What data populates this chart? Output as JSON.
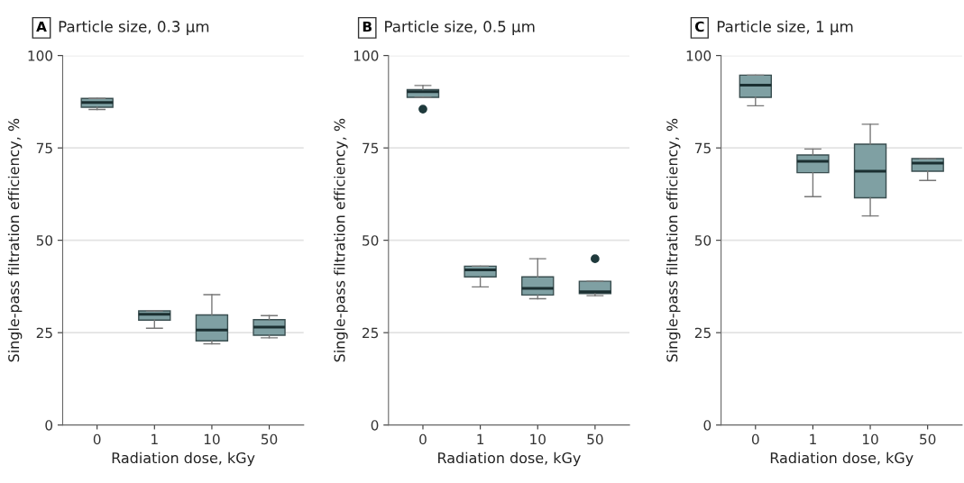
{
  "chart_data": [
    {
      "type": "box",
      "title": "Particle size, 0.3 µm",
      "annotations": [
        "A"
      ],
      "xlabel": "Radiation dose, kGy",
      "ylabel": "Single-pass filtration efficiency, %",
      "categories": [
        "0",
        "1",
        "10",
        "50"
      ],
      "color": "#7fa0a3",
      "ylim": [
        0,
        100
      ],
      "yticks": [
        0,
        25,
        50,
        75,
        100
      ],
      "grid": "y",
      "legend": false,
      "boxes": [
        {
          "low": 85.4,
          "q1": 86.0,
          "median": 87.3,
          "q3": 88.4,
          "high": 88.4
        },
        {
          "low": 26.2,
          "q1": 28.4,
          "median": 30.0,
          "q3": 30.9,
          "high": 30.9
        },
        {
          "low": 22.0,
          "q1": 22.8,
          "median": 25.7,
          "q3": 29.8,
          "high": 35.3
        },
        {
          "low": 23.6,
          "q1": 24.3,
          "median": 26.5,
          "q3": 28.5,
          "high": 29.6
        }
      ]
    },
    {
      "type": "box",
      "title": "Particle size, 0.5 µm",
      "annotations": [
        "B"
      ],
      "xlabel": "Radiation dose, kGy",
      "ylabel": "Single-pass filtration efficiency, %",
      "categories": [
        "0",
        "1",
        "10",
        "50"
      ],
      "color": "#7fa0a3",
      "ylim": [
        0,
        100
      ],
      "yticks": [
        0,
        25,
        50,
        75,
        100
      ],
      "grid": "y",
      "legend": false,
      "boxes": [
        {
          "low": 88.7,
          "q1": 88.7,
          "median": 90.2,
          "q3": 90.8,
          "high": 91.9,
          "outliers": [
            85.5
          ]
        },
        {
          "low": 37.4,
          "q1": 40.1,
          "median": 42.0,
          "q3": 43.0,
          "high": 43.0
        },
        {
          "low": 34.2,
          "q1": 35.2,
          "median": 37.0,
          "q3": 40.1,
          "high": 45.0
        },
        {
          "low": 35.0,
          "q1": 35.6,
          "median": 36.1,
          "q3": 38.9,
          "high": 38.9,
          "outliers": [
            45.0
          ]
        }
      ]
    },
    {
      "type": "box",
      "title": "Particle size, 1 µm",
      "annotations": [
        "C"
      ],
      "xlabel": "Radiation dose, kGy",
      "ylabel": "Single-pass filtration efficiency, %",
      "categories": [
        "0",
        "1",
        "10",
        "50"
      ],
      "color": "#7fa0a3",
      "ylim": [
        0,
        100
      ],
      "yticks": [
        0,
        25,
        50,
        75,
        100
      ],
      "grid": "y",
      "legend": false,
      "boxes": [
        {
          "low": 86.4,
          "q1": 88.7,
          "median": 92.0,
          "q3": 94.7,
          "high": 94.7
        },
        {
          "low": 61.8,
          "q1": 68.3,
          "median": 71.4,
          "q3": 73.1,
          "high": 74.7
        },
        {
          "low": 56.6,
          "q1": 61.5,
          "median": 68.7,
          "q3": 76.0,
          "high": 81.4
        },
        {
          "low": 66.2,
          "q1": 68.7,
          "median": 70.9,
          "q3": 72.1,
          "high": 72.1
        }
      ]
    }
  ]
}
